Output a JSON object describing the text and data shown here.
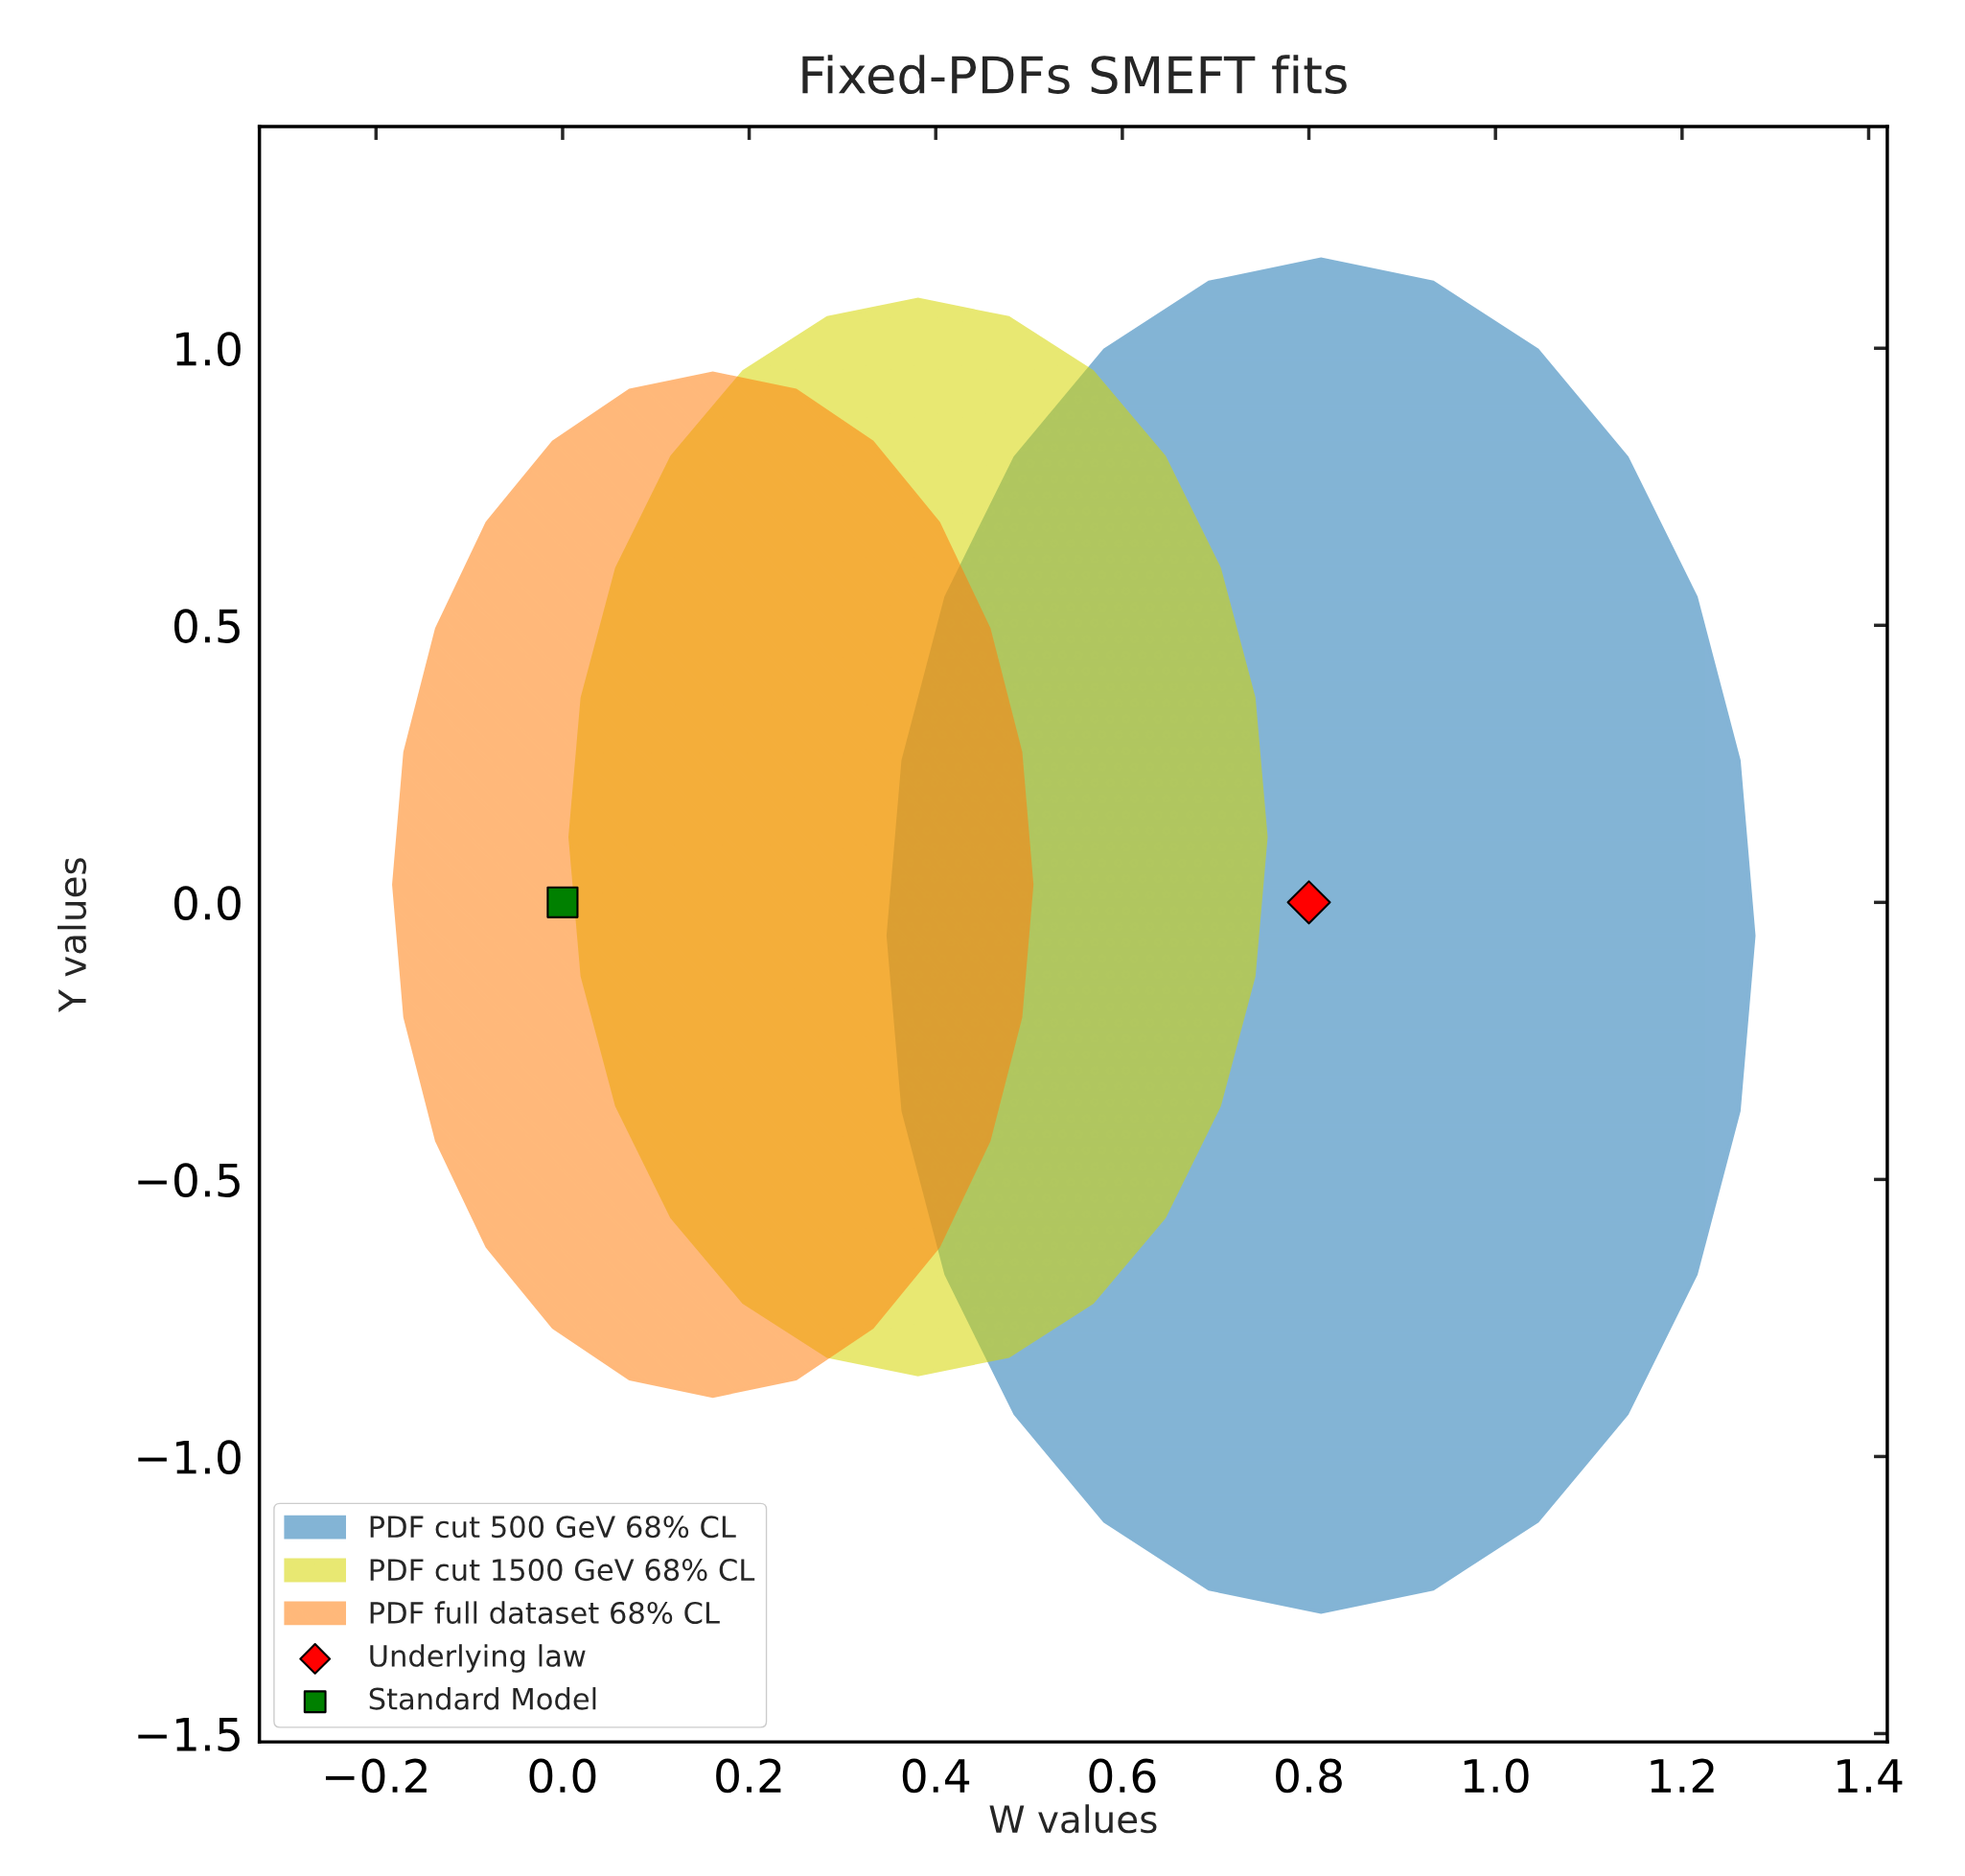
{
  "chart_data": {
    "type": "area",
    "title": "Fixed-PDFs SMEFT fits",
    "xlabel": "W values",
    "ylabel": "Y values",
    "xlim": [
      -0.325,
      1.42
    ],
    "ylim": [
      -1.515,
      1.4
    ],
    "xticks": [
      {
        "value": -0.2,
        "label": "−0.2"
      },
      {
        "value": 0.0,
        "label": "0.0"
      },
      {
        "value": 0.2,
        "label": "0.2"
      },
      {
        "value": 0.4,
        "label": "0.4"
      },
      {
        "value": 0.6,
        "label": "0.6"
      },
      {
        "value": 0.8,
        "label": "0.8"
      },
      {
        "value": 1.0,
        "label": "1.0"
      },
      {
        "value": 1.2,
        "label": "1.2"
      },
      {
        "value": 1.4,
        "label": "1.4"
      }
    ],
    "yticks": [
      {
        "value": -1.5,
        "label": "−1.5"
      },
      {
        "value": -1.0,
        "label": "−1.0"
      },
      {
        "value": -0.5,
        "label": "−0.5"
      },
      {
        "value": 0.0,
        "label": "0.0"
      },
      {
        "value": 0.5,
        "label": "0.5"
      },
      {
        "value": 1.0,
        "label": "1.0"
      }
    ],
    "grid": false,
    "legend": "bottom left",
    "series": [
      {
        "name": "PDF cut 500 GeV 68% CL",
        "color": "#1f77b4",
        "x": [
          1.277,
          1.261,
          1.215,
          1.141,
          1.045,
          0.933,
          0.813,
          0.693,
          0.581,
          0.485,
          0.411,
          0.365,
          0.349,
          0.365,
          0.411,
          0.485,
          0.581,
          0.693,
          0.813,
          0.933,
          1.045,
          1.141,
          1.215,
          1.261
        ],
        "values": [
          -0.06,
          0.256,
          0.551,
          0.803,
          0.997,
          1.119,
          1.161,
          1.119,
          0.997,
          0.803,
          0.551,
          0.256,
          -0.06,
          -0.376,
          -0.671,
          -0.923,
          -1.117,
          -1.239,
          -1.281,
          -1.239,
          -1.117,
          -0.923,
          -0.671,
          -0.376
        ]
      },
      {
        "name": "PDF cut 1500 GeV 68% CL",
        "color": "#d6d600",
        "x": [
          0.754,
          0.741,
          0.704,
          0.645,
          0.568,
          0.478,
          0.381,
          0.284,
          0.194,
          0.117,
          0.058,
          0.021,
          0.008,
          0.021,
          0.058,
          0.117,
          0.194,
          0.284,
          0.381,
          0.478,
          0.568,
          0.645,
          0.704,
          0.741
        ],
        "values": [
          0.118,
          0.369,
          0.603,
          0.804,
          0.958,
          1.055,
          1.088,
          1.055,
          0.958,
          0.804,
          0.603,
          0.369,
          0.118,
          -0.133,
          -0.367,
          -0.568,
          -0.722,
          -0.819,
          -0.852,
          -0.819,
          -0.722,
          -0.568,
          -0.367,
          -0.133
        ]
      },
      {
        "name": "PDF full dataset 68% CL",
        "color": "#ff7f0e",
        "x": [
          0.503,
          0.491,
          0.457,
          0.403,
          0.332,
          0.25,
          0.161,
          0.072,
          -0.01,
          -0.081,
          -0.135,
          -0.169,
          -0.181,
          -0.169,
          -0.135,
          -0.081,
          -0.01,
          0.072,
          0.161,
          0.25,
          0.332,
          0.403,
          0.457,
          0.491
        ],
        "values": [
          0.032,
          0.271,
          0.494,
          0.685,
          0.831,
          0.924,
          0.955,
          0.924,
          0.831,
          0.685,
          0.494,
          0.271,
          0.032,
          -0.207,
          -0.43,
          -0.621,
          -0.767,
          -0.86,
          -0.891,
          -0.86,
          -0.767,
          -0.621,
          -0.43,
          -0.207
        ]
      },
      {
        "name": "Underlying law",
        "type": "scatter",
        "marker": "diamond",
        "color": "#ff0000",
        "x": [
          0.8
        ],
        "values": [
          0
        ]
      },
      {
        "name": "Standard Model",
        "type": "scatter",
        "marker": "square",
        "color": "#008000",
        "x": [
          0.0
        ],
        "values": [
          0
        ]
      }
    ]
  }
}
